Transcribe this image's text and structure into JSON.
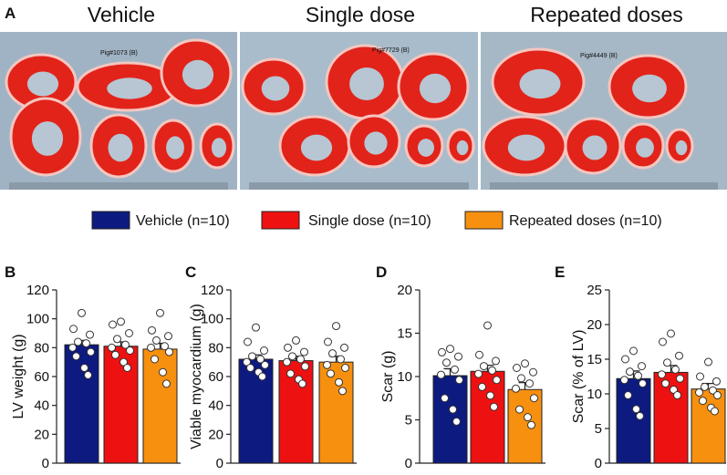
{
  "figure": {
    "panel_label": "A",
    "photo_titles": [
      "Vehicle",
      "Single dose",
      "Repeated doses"
    ],
    "photo_labels": [
      "Pig#1073 (B)",
      "Pig#7729 (B)",
      "Pig#4449 (B)"
    ]
  },
  "legend": [
    {
      "name": "Vehicle (n=10)",
      "color": "#0d1a80"
    },
    {
      "name": "Single dose (n=10)",
      "color": "#ee1111"
    },
    {
      "name": "Repeated doses (n=10)",
      "color": "#f7900f"
    }
  ],
  "chart_data": [
    {
      "type": "bar",
      "panel_label": "B",
      "y_label": "LV weight (g)",
      "ylim": [
        0,
        120
      ],
      "yticks": [
        0,
        20,
        40,
        60,
        80,
        100,
        120
      ],
      "series": [
        {
          "color": "#0d1a80",
          "values": [
            82
          ],
          "errors": [
            3
          ],
          "points": [
            104,
            93,
            89,
            84,
            83,
            80,
            77,
            74,
            66,
            61
          ]
        },
        {
          "color": "#ee1111",
          "values": [
            81
          ],
          "errors": [
            3
          ],
          "points": [
            98,
            96,
            90,
            86,
            82,
            80,
            78,
            75,
            70,
            66
          ]
        },
        {
          "color": "#f7900f",
          "values": [
            79
          ],
          "errors": [
            4
          ],
          "points": [
            104,
            92,
            88,
            85,
            81,
            80,
            77,
            72,
            63,
            55
          ]
        }
      ]
    },
    {
      "type": "bar",
      "panel_label": "C",
      "y_label": "Viable myocardium (g)",
      "ylim": [
        0,
        120
      ],
      "yticks": [
        0,
        20,
        40,
        60,
        80,
        100,
        120
      ],
      "series": [
        {
          "color": "#0d1a80",
          "values": [
            72
          ],
          "errors": [
            3
          ],
          "points": [
            94,
            84,
            78,
            74,
            72,
            70,
            68,
            66,
            63,
            60
          ]
        },
        {
          "color": "#ee1111",
          "values": [
            71
          ],
          "errors": [
            3
          ],
          "points": [
            85,
            80,
            77,
            74,
            72,
            70,
            67,
            62,
            58,
            55
          ]
        },
        {
          "color": "#f7900f",
          "values": [
            70
          ],
          "errors": [
            4
          ],
          "points": [
            95,
            84,
            80,
            76,
            72,
            68,
            66,
            62,
            56,
            50
          ]
        }
      ]
    },
    {
      "type": "bar",
      "panel_label": "D",
      "y_label": "Scar (g)",
      "ylim": [
        0,
        20
      ],
      "yticks": [
        0,
        5,
        10,
        15,
        20
      ],
      "series": [
        {
          "color": "#0d1a80",
          "values": [
            10.1
          ],
          "errors": [
            0.8
          ],
          "points": [
            13.2,
            12.8,
            12.3,
            11.6,
            10.8,
            10.2,
            9.6,
            7.5,
            6.2,
            4.8
          ]
        },
        {
          "color": "#ee1111",
          "values": [
            10.6
          ],
          "errors": [
            0.7
          ],
          "points": [
            15.9,
            12.5,
            11.8,
            11.2,
            10.7,
            10.3,
            9.6,
            8.8,
            7.8,
            6.5
          ]
        },
        {
          "color": "#f7900f",
          "values": [
            8.5
          ],
          "errors": [
            0.8
          ],
          "points": [
            11.5,
            11.0,
            10.5,
            9.8,
            9.2,
            8.6,
            7.5,
            6.2,
            5.3,
            4.4
          ]
        }
      ]
    },
    {
      "type": "bar",
      "panel_label": "E",
      "y_label": "Scar (% of LV)",
      "ylim": [
        0,
        25
      ],
      "yticks": [
        0,
        5,
        10,
        15,
        20,
        25
      ],
      "series": [
        {
          "color": "#0d1a80",
          "values": [
            12.2
          ],
          "errors": [
            1.1
          ],
          "points": [
            16.2,
            15.0,
            14.0,
            13.2,
            12.6,
            12.0,
            11.5,
            9.8,
            7.8,
            6.8
          ]
        },
        {
          "color": "#ee1111",
          "values": [
            13.1
          ],
          "errors": [
            1.0
          ],
          "points": [
            18.7,
            17.5,
            15.5,
            14.5,
            13.5,
            12.8,
            12.2,
            11.5,
            10.6,
            9.8
          ]
        },
        {
          "color": "#f7900f",
          "values": [
            10.7
          ],
          "errors": [
            0.8
          ],
          "points": [
            14.6,
            12.5,
            11.8,
            11.0,
            10.5,
            10.2,
            9.8,
            9.0,
            8.0,
            7.5
          ]
        }
      ]
    }
  ]
}
